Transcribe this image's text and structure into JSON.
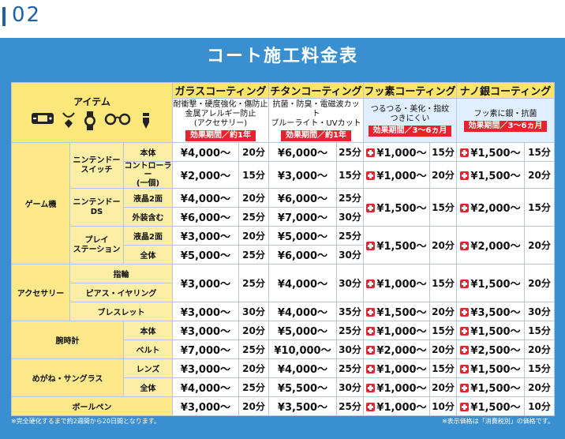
{
  "page_number": "02",
  "title": "コート施工料金表",
  "header": {
    "item_label": "アイテム",
    "icons": [
      "game-console-icon",
      "necklace-icon",
      "watch-icon",
      "glasses-icon",
      "pen-icon"
    ],
    "coatings": [
      {
        "name": "ガラスコーティング",
        "features": [
          "耐衝撃・硬度強化・傷防止",
          "金属アレルギー防止",
          "(アクセサリー)"
        ],
        "duration": "効果期間／約1年"
      },
      {
        "name": "チタンコーティング",
        "features": [
          "抗菌・防臭・電磁波カット",
          "ブルーライト・UVカット"
        ],
        "duration": "効果期間／約1年"
      },
      {
        "name": "フッ素コーティング",
        "features": [
          "つるつる・美化・指紋",
          "つきにくい"
        ],
        "duration": "効果期間／3〜6ヵ月"
      },
      {
        "name": "ナノ銀コーティング",
        "features": [
          "フッ素に銀・抗菌"
        ],
        "duration": "効果期間／3〜6ヵ月"
      }
    ]
  },
  "rows": {
    "game": {
      "label": "ゲーム機",
      "switch": {
        "label": "ニンテンドー\nスイッチ",
        "body": {
          "label": "本体",
          "glass": [
            "¥4,000〜",
            "20分"
          ],
          "titan": [
            "¥6,000〜",
            "25分"
          ],
          "fluor": [
            "¥1,000〜",
            "15分"
          ],
          "nano": [
            "¥1,500〜",
            "15分"
          ]
        },
        "controller": {
          "label": "コントローラー\n(一個)",
          "glass": [
            "¥2,000〜",
            "15分"
          ],
          "titan": [
            "¥3,000〜",
            "15分"
          ],
          "fluor": [
            "¥1,000〜",
            "20分"
          ],
          "nano": [
            "¥1,500〜",
            "20分"
          ]
        }
      },
      "ds": {
        "label": "ニンテンドー\nDS",
        "lcd": {
          "label": "液晶2面",
          "glass": [
            "¥4,000〜",
            "20分"
          ],
          "titan": [
            "¥6,000〜",
            "25分"
          ]
        },
        "exterior": {
          "label": "外装含む",
          "glass": [
            "¥6,000〜",
            "25分"
          ],
          "titan": [
            "¥7,000〜",
            "30分"
          ]
        },
        "fluor": [
          "¥1,500〜",
          "15分"
        ],
        "nano": [
          "¥2,000〜",
          "15分"
        ]
      },
      "ps": {
        "label": "プレイ\nステーション",
        "lcd": {
          "label": "液晶2面",
          "glass": [
            "¥3,000〜",
            "20分"
          ],
          "titan": [
            "¥5,000〜",
            "25分"
          ]
        },
        "whole": {
          "label": "全体",
          "glass": [
            "¥5,000〜",
            "25分"
          ],
          "titan": [
            "¥6,000〜",
            "30分"
          ]
        },
        "fluor": [
          "¥1,500〜",
          "20分"
        ],
        "nano": [
          "¥2,000〜",
          "20分"
        ]
      }
    },
    "acc": {
      "label": "アクセサリー",
      "ring": "指輪",
      "pierce": "ピアス・イヤリング",
      "ring_pierce": {
        "glass": [
          "¥3,000〜",
          "25分"
        ],
        "titan": [
          "¥4,000〜",
          "30分"
        ],
        "fluor": [
          "¥1,000〜",
          "15分"
        ],
        "nano": [
          "¥1,500〜",
          "20分"
        ]
      },
      "bracelet": {
        "label": "ブレスレット",
        "glass": [
          "¥3,000〜",
          "30分"
        ],
        "titan": [
          "¥4,000〜",
          "35分"
        ],
        "fluor": [
          "¥1,500〜",
          "20分"
        ],
        "nano": [
          "¥3,500〜",
          "30分"
        ]
      }
    },
    "watch": {
      "label": "腕時計",
      "body": {
        "label": "本体",
        "glass": [
          "¥3,000〜",
          "20分"
        ],
        "titan": [
          "¥5,000〜",
          "25分"
        ],
        "fluor": [
          "¥1,000〜",
          "15分"
        ],
        "nano": [
          "¥1,500〜",
          "15分"
        ]
      },
      "belt": {
        "label": "ベルト",
        "glass": [
          "¥7,000〜",
          "25分"
        ],
        "titan": [
          "¥10,000〜",
          "30分"
        ],
        "fluor": [
          "¥2,000〜",
          "20分"
        ],
        "nano": [
          "¥2,500〜",
          "20分"
        ]
      }
    },
    "glasses": {
      "label": "めがね・サングラス",
      "lens": {
        "label": "レンズ",
        "glass": [
          "¥3,000〜",
          "20分"
        ],
        "titan": [
          "¥4,000〜",
          "25分"
        ],
        "fluor": [
          "¥1,000〜",
          "15分"
        ],
        "nano": [
          "¥1,500〜",
          "15分"
        ]
      },
      "whole": {
        "label": "全体",
        "glass": [
          "¥4,000〜",
          "25分"
        ],
        "titan": [
          "¥5,500〜",
          "30分"
        ],
        "fluor": [
          "¥1,000〜",
          "20分"
        ],
        "nano": [
          "¥1,500〜",
          "20分"
        ]
      }
    },
    "pen": {
      "label": "ボールペン",
      "glass": [
        "¥3,000〜",
        "20分"
      ],
      "titan": [
        "¥3,500〜",
        "25分"
      ],
      "fluor": [
        "¥1,000〜",
        "10分"
      ],
      "nano": [
        "¥1,500〜",
        "10分"
      ]
    }
  },
  "footnotes": {
    "left": "※完全硬化するまで約2週間から20日間となります。",
    "right": "※表示価格は「消費税別」の価格です。"
  },
  "colors": {
    "panel": "#3a8fd0",
    "header_yellow": "#fde46a",
    "red": "#e6232e",
    "page_number": "#1e5fa8"
  }
}
